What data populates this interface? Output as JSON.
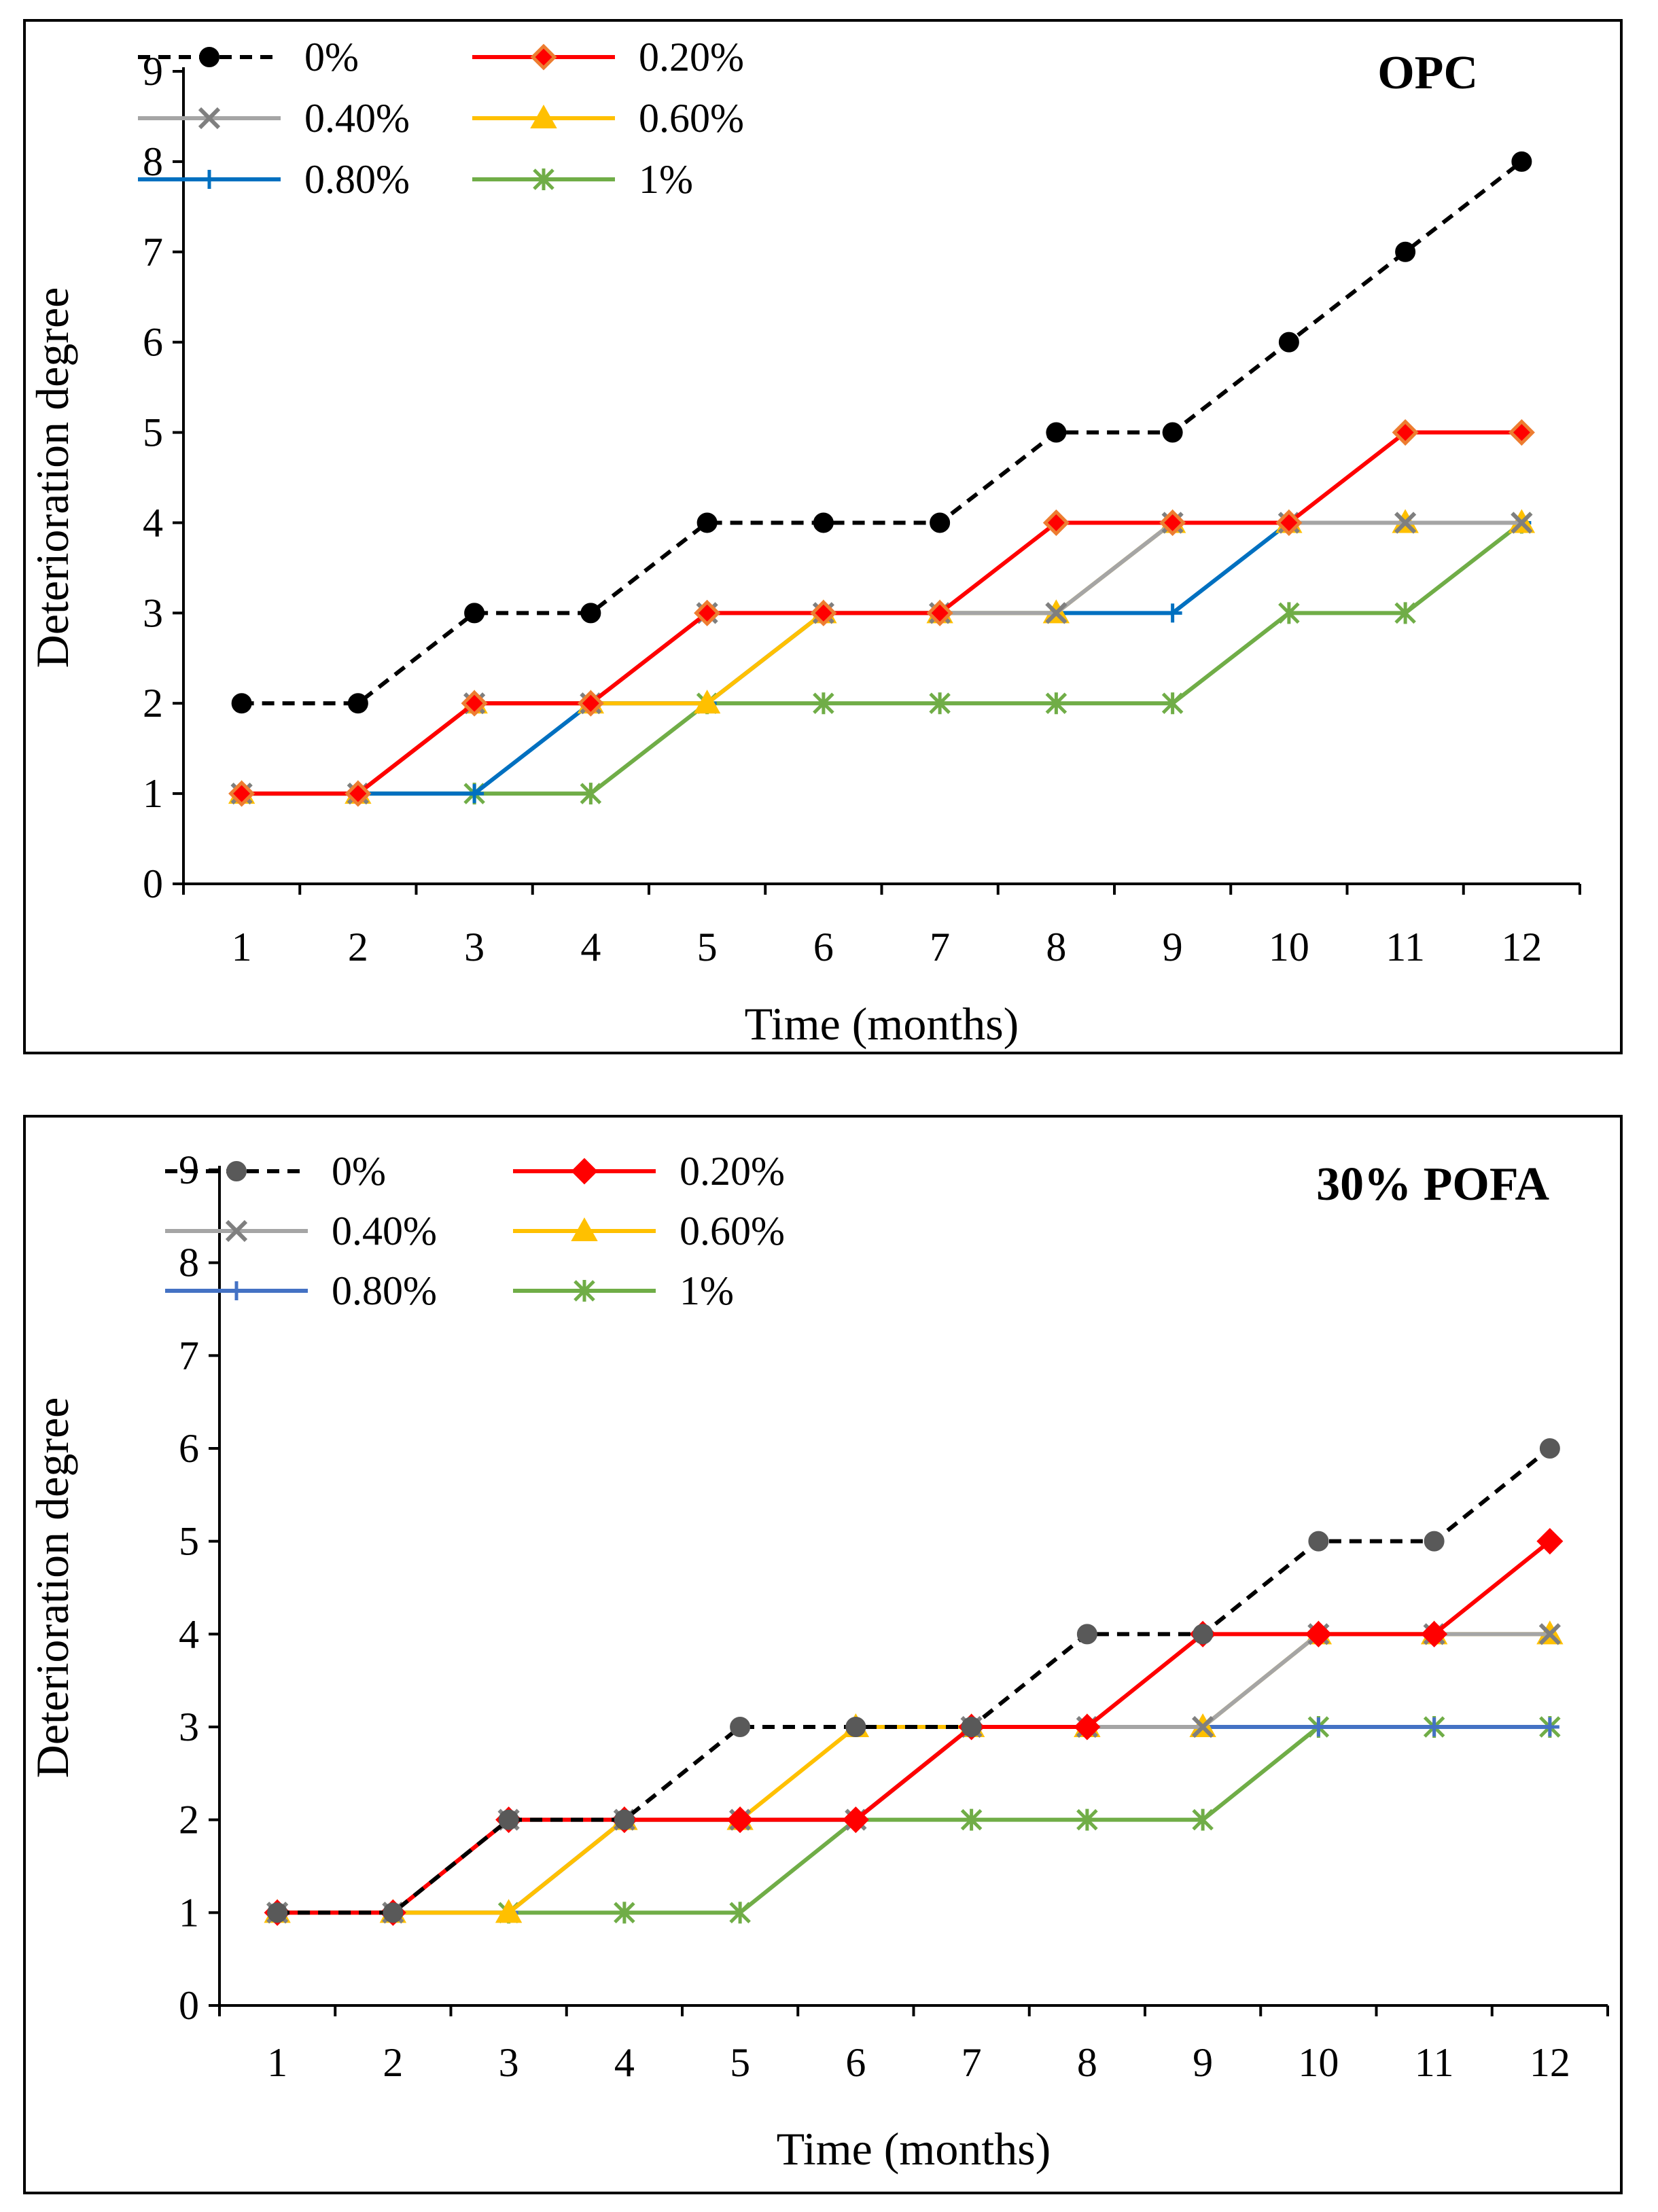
{
  "chart_data": [
    {
      "type": "line",
      "title": "OPC",
      "xlabel": "Time (months)",
      "ylabel": "Deterioration degree",
      "categories": [
        "1",
        "2",
        "3",
        "4",
        "5",
        "6",
        "7",
        "8",
        "9",
        "10",
        "11",
        "12"
      ],
      "yticks": [
        "0",
        "1",
        "2",
        "3",
        "4",
        "5",
        "6",
        "7",
        "8",
        "9"
      ],
      "ylim": [
        0,
        9
      ],
      "legend_position": "top-left",
      "series": [
        {
          "name": "0%",
          "color": "#000000",
          "marker_color": "#000000",
          "dash": true,
          "marker": "circle",
          "values": [
            2,
            2,
            3,
            3,
            4,
            4,
            4,
            5,
            5,
            6,
            7,
            8
          ]
        },
        {
          "name": "0.20%",
          "color": "#ff0000",
          "marker_color": "#ed7d31",
          "dash": false,
          "marker": "diamond",
          "values": [
            1,
            1,
            2,
            2,
            3,
            3,
            3,
            4,
            4,
            4,
            5,
            5
          ]
        },
        {
          "name": "0.40%",
          "color": "#a5a5a5",
          "marker_color": "#7f7f7f",
          "dash": false,
          "marker": "x",
          "values": [
            1,
            1,
            2,
            2,
            3,
            3,
            3,
            3,
            4,
            4,
            4,
            4
          ]
        },
        {
          "name": "0.60%",
          "color": "#ffc000",
          "marker_color": "#ffc000",
          "dash": false,
          "marker": "triangle",
          "values": [
            1,
            1,
            2,
            2,
            2,
            3,
            3,
            3,
            4,
            4,
            4,
            4
          ]
        },
        {
          "name": "0.80%",
          "color": "#0070c0",
          "marker_color": "#0070c0",
          "dash": false,
          "marker": "plus",
          "values": [
            1,
            1,
            1,
            2,
            2,
            3,
            3,
            3,
            3,
            4,
            4,
            4
          ]
        },
        {
          "name": "1%",
          "color": "#70ad47",
          "marker_color": "#70ad47",
          "dash": false,
          "marker": "star",
          "values": [
            1,
            1,
            1,
            1,
            2,
            2,
            2,
            2,
            2,
            3,
            3,
            4
          ]
        }
      ]
    },
    {
      "type": "line",
      "title": "30% POFA",
      "xlabel": "Time (months)",
      "ylabel": "Deterioration degree",
      "categories": [
        "1",
        "2",
        "3",
        "4",
        "5",
        "6",
        "7",
        "8",
        "9",
        "10",
        "11",
        "12"
      ],
      "yticks": [
        "0",
        "1",
        "2",
        "3",
        "4",
        "5",
        "6",
        "7",
        "8",
        "9"
      ],
      "ylim": [
        0,
        9
      ],
      "legend_position": "top-left",
      "series": [
        {
          "name": "0%",
          "color": "#000000",
          "marker_color": "#595959",
          "dash": true,
          "marker": "circle",
          "values": [
            1,
            1,
            2,
            2,
            3,
            3,
            3,
            4,
            4,
            5,
            5,
            6
          ]
        },
        {
          "name": "0.20%",
          "color": "#ff0000",
          "marker_color": "#ff0000",
          "dash": false,
          "marker": "diamond",
          "values": [
            1,
            1,
            2,
            2,
            2,
            2,
            3,
            3,
            4,
            4,
            4,
            5
          ]
        },
        {
          "name": "0.40%",
          "color": "#a5a5a5",
          "marker_color": "#7f7f7f",
          "dash": false,
          "marker": "x",
          "values": [
            1,
            1,
            2,
            2,
            2,
            2,
            3,
            3,
            3,
            4,
            4,
            4
          ]
        },
        {
          "name": "0.60%",
          "color": "#ffc000",
          "marker_color": "#ffc000",
          "dash": false,
          "marker": "triangle",
          "values": [
            1,
            1,
            1,
            2,
            2,
            3,
            3,
            3,
            3,
            4,
            4,
            4
          ]
        },
        {
          "name": "0.80%",
          "color": "#4472c4",
          "marker_color": "#4472c4",
          "dash": false,
          "marker": "plus",
          "values": [
            1,
            1,
            1,
            2,
            2,
            2,
            3,
            3,
            3,
            3,
            3,
            3
          ]
        },
        {
          "name": "1%",
          "color": "#70ad47",
          "marker_color": "#70ad47",
          "dash": false,
          "marker": "star",
          "values": [
            1,
            1,
            1,
            1,
            1,
            2,
            2,
            2,
            2,
            3,
            3,
            3
          ]
        }
      ]
    }
  ]
}
